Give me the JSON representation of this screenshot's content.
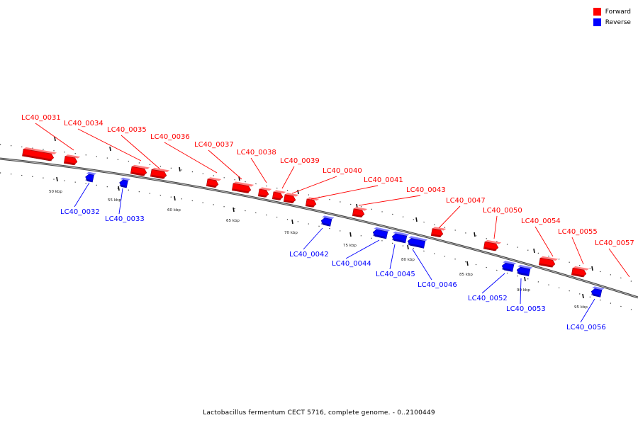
{
  "legend": {
    "forward": {
      "label": "Forward",
      "color": "#ff0000"
    },
    "reverse": {
      "label": "Reverse",
      "color": "#0000ff"
    }
  },
  "caption": "Lactobacillus fermentum CECT 5716, complete genome. - 0..2100449",
  "kbp_labels": [
    "50 kbp",
    "55 kbp",
    "60 kbp",
    "65 kbp",
    "70 kbp",
    "75 kbp",
    "80 kbp",
    "85 kbp",
    "90 kbp",
    "95 kbp"
  ],
  "genes": [
    {
      "name": "LC40_0031",
      "strand": "forward"
    },
    {
      "name": "LC40_0032",
      "strand": "reverse"
    },
    {
      "name": "LC40_0033",
      "strand": "reverse"
    },
    {
      "name": "LC40_0034",
      "strand": "forward"
    },
    {
      "name": "LC40_0035",
      "strand": "forward"
    },
    {
      "name": "LC40_0036",
      "strand": "forward"
    },
    {
      "name": "LC40_0037",
      "strand": "forward"
    },
    {
      "name": "LC40_0038",
      "strand": "forward"
    },
    {
      "name": "LC40_0039",
      "strand": "forward"
    },
    {
      "name": "LC40_0040",
      "strand": "forward"
    },
    {
      "name": "LC40_0041",
      "strand": "forward"
    },
    {
      "name": "LC40_0042",
      "strand": "reverse"
    },
    {
      "name": "LC40_0043",
      "strand": "forward"
    },
    {
      "name": "LC40_0044",
      "strand": "reverse"
    },
    {
      "name": "LC40_0045",
      "strand": "reverse"
    },
    {
      "name": "LC40_0046",
      "strand": "reverse"
    },
    {
      "name": "LC40_0047",
      "strand": "forward"
    },
    {
      "name": "LC40_0050",
      "strand": "forward"
    },
    {
      "name": "LC40_0052",
      "strand": "reverse"
    },
    {
      "name": "LC40_0053",
      "strand": "reverse"
    },
    {
      "name": "LC40_0054",
      "strand": "forward"
    },
    {
      "name": "LC40_0055",
      "strand": "forward"
    },
    {
      "name": "LC40_0056",
      "strand": "reverse"
    },
    {
      "name": "LC40_0057",
      "strand": "forward"
    }
  ]
}
